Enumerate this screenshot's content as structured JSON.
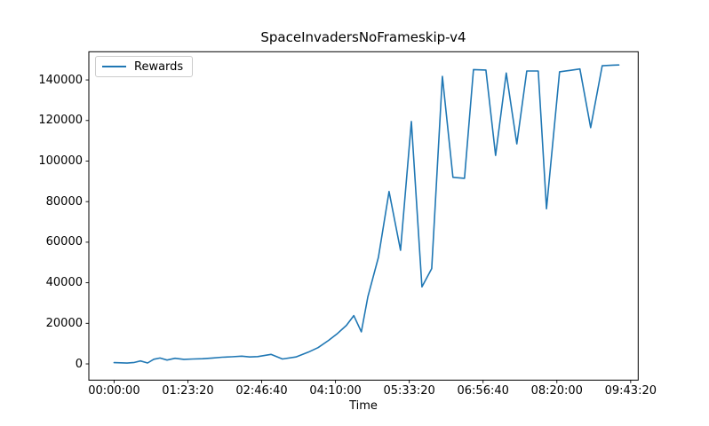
{
  "figure": {
    "background": "#ffffff",
    "text_color": "#000000",
    "spine_color": "#000000"
  },
  "chart_data": {
    "type": "line",
    "title": "SpaceInvadersNoFrameskip-v4",
    "xlabel": "Time",
    "ylabel": "",
    "grid": false,
    "legend_position": "upper left",
    "legend": [
      "Rewards"
    ],
    "line_color": "#1f77b4",
    "x_unit": "seconds shown as hh:mm:ss",
    "xlim": [
      -1710,
      35510
    ],
    "ylim": [
      -8000,
      153900
    ],
    "x_ticks": {
      "values": [
        0,
        5000,
        10000,
        15000,
        20000,
        25000,
        30000,
        35000
      ],
      "labels": [
        "00:00:00",
        "01:23:20",
        "02:46:40",
        "04:10:00",
        "05:33:20",
        "06:56:40",
        "08:20:00",
        "09:43:20"
      ]
    },
    "y_ticks": {
      "values": [
        0,
        20000,
        40000,
        60000,
        80000,
        100000,
        120000,
        140000
      ],
      "labels": [
        "0",
        "20000",
        "40000",
        "60000",
        "80000",
        "100000",
        "120000",
        "140000"
      ]
    },
    "series": [
      {
        "name": "Rewards",
        "color": "#1f77b4",
        "points": [
          [
            0,
            600
          ],
          [
            460,
            550
          ],
          [
            880,
            400
          ],
          [
            1370,
            700
          ],
          [
            1790,
            1450
          ],
          [
            2270,
            450
          ],
          [
            2690,
            2300
          ],
          [
            3110,
            2900
          ],
          [
            3590,
            1900
          ],
          [
            4130,
            2750
          ],
          [
            4730,
            2250
          ],
          [
            5340,
            2400
          ],
          [
            6000,
            2550
          ],
          [
            6660,
            2900
          ],
          [
            7320,
            3300
          ],
          [
            7980,
            3500
          ],
          [
            8650,
            3800
          ],
          [
            9190,
            3400
          ],
          [
            9730,
            3600
          ],
          [
            10630,
            4700
          ],
          [
            11410,
            2400
          ],
          [
            12320,
            3400
          ],
          [
            13160,
            5800
          ],
          [
            13820,
            8000
          ],
          [
            14540,
            11600
          ],
          [
            15140,
            15000
          ],
          [
            15740,
            19000
          ],
          [
            16240,
            23800
          ],
          [
            16750,
            15800
          ],
          [
            17190,
            33000
          ],
          [
            17910,
            52500
          ],
          [
            18630,
            85000
          ],
          [
            19410,
            56000
          ],
          [
            20140,
            119500
          ],
          [
            20860,
            38000
          ],
          [
            21520,
            47000
          ],
          [
            22240,
            141800
          ],
          [
            22960,
            92000
          ],
          [
            23740,
            91500
          ],
          [
            24350,
            145100
          ],
          [
            25190,
            144900
          ],
          [
            25850,
            102800
          ],
          [
            26570,
            143400
          ],
          [
            27290,
            108500
          ],
          [
            27960,
            144400
          ],
          [
            28740,
            144400
          ],
          [
            29300,
            76500
          ],
          [
            30180,
            144000
          ],
          [
            30900,
            144700
          ],
          [
            31560,
            145400
          ],
          [
            32290,
            116500
          ],
          [
            33070,
            147000
          ],
          [
            33790,
            147300
          ],
          [
            34200,
            147400
          ]
        ]
      }
    ]
  }
}
